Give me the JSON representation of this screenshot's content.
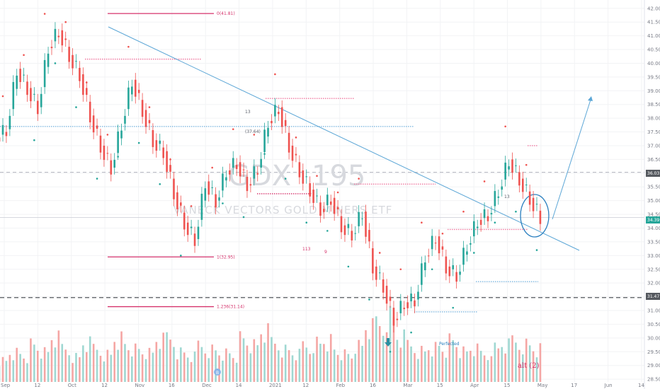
{
  "chart_data": {
    "type": "candlestick",
    "symbol": "GDX",
    "interval": "195",
    "watermark_name": "VANECK VECTORS GOLD MINERS ETF",
    "x_tick_labels": [
      "Sep",
      "12",
      "Oct",
      "12",
      "Nov",
      "16",
      "Dec",
      "14",
      "2021",
      "12",
      "Feb",
      "16",
      "Mar",
      "15",
      "Apr",
      "15",
      "May",
      "17",
      "Jun",
      "14"
    ],
    "y_tick_labels": [
      "42.00",
      "41.50",
      "41.00",
      "40.50",
      "40.00",
      "39.50",
      "39.00",
      "38.50",
      "38.00",
      "37.50",
      "37.00",
      "36.50",
      "36.00",
      "35.50",
      "35.00",
      "34.50",
      "34.00",
      "33.50",
      "33.00",
      "32.50",
      "32.00",
      "31.50",
      "31.00",
      "30.50",
      "30.00",
      "29.50",
      "29.00",
      "28.50"
    ],
    "ylim": [
      28.4,
      42.2
    ],
    "last_price": "34.39",
    "line_36": "36.03",
    "line_31": "31.47",
    "fib_levels": [
      {
        "label": "0(41.81)",
        "value": 41.81
      },
      {
        "label": "1(32.95)",
        "value": 32.95
      },
      {
        "label": "1.236(31.14)",
        "value": 31.14
      }
    ],
    "close_series_approx": [
      37.6,
      39.8,
      39.1,
      38.4,
      40.6,
      41.2,
      40.3,
      39.6,
      38.1,
      37.0,
      36.2,
      37.8,
      39.4,
      38.3,
      37.2,
      36.8,
      35.3,
      34.2,
      33.6,
      35.7,
      35.0,
      36.1,
      36.4,
      35.6,
      36.2,
      37.9,
      38.4,
      37.0,
      36.1,
      35.4,
      34.7,
      35.1,
      34.1,
      33.8,
      34.6,
      32.6,
      31.9,
      30.7,
      31.3,
      31.4,
      33.0,
      33.7,
      32.6,
      32.3,
      33.4,
      34.3,
      34.5,
      35.4,
      36.5,
      35.8,
      35.1,
      34.4
    ],
    "volume_approx": [
      38,
      52,
      45,
      60,
      48,
      71,
      55,
      42,
      66,
      58,
      49,
      77,
      61,
      53,
      47,
      68,
      72,
      50,
      44,
      63,
      57,
      51,
      46,
      70,
      59,
      81,
      65,
      54,
      48,
      62,
      69,
      73,
      52,
      45,
      58,
      88,
      95,
      110,
      76,
      64,
      55,
      61,
      58,
      67,
      49,
      53,
      45,
      57,
      63,
      71,
      66,
      59
    ],
    "annotations": [
      "113",
      "9",
      "13",
      "13",
      "Perfected",
      "alt (2)",
      "(37.64)"
    ],
    "marker_label": "B",
    "colors": {
      "up": "#26a69a",
      "down": "#ef5350",
      "trendline": "#5ba6d6",
      "fib": "#d5326b",
      "grid": "#f2f3f5"
    },
    "grid": true
  }
}
